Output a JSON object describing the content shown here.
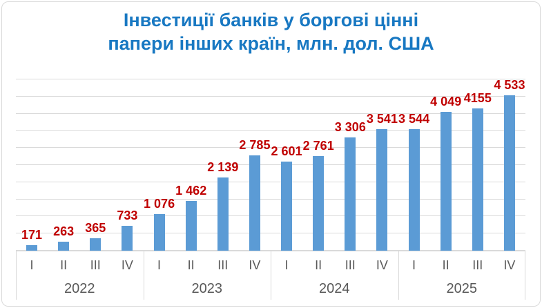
{
  "window": {
    "background": "#FFFFFF",
    "border_color": "#D9D9D9"
  },
  "title": {
    "lines": [
      "Інвестиції банків у боргові цінні",
      "папери інших країн, млн. дол. США"
    ],
    "color": "#1878C2"
  },
  "chart_data": {
    "type": "bar",
    "title": "Інвестиції банків у боргові цінні папери інших країн, млн. дол. США",
    "groups": [
      {
        "label": "2022",
        "categories": [
          "I",
          "II",
          "III",
          "IV"
        ]
      },
      {
        "label": "2023",
        "categories": [
          "I",
          "II",
          "III",
          "IV"
        ]
      },
      {
        "label": "2024",
        "categories": [
          "I",
          "II",
          "III",
          "IV"
        ]
      },
      {
        "label": "2025",
        "categories": [
          "I",
          "II",
          "III",
          "IV"
        ]
      }
    ],
    "values": [
      171,
      263,
      365,
      733,
      1076,
      1462,
      2139,
      2785,
      2601,
      2761,
      3306,
      3541,
      3544,
      4049,
      4155,
      4533
    ],
    "labels": [
      "171",
      "263",
      "365",
      "733",
      "1 076",
      "1 462",
      "2 139",
      "2 785",
      "2 601",
      "2 761",
      "3 306",
      "3 541",
      "3 544",
      "4 049",
      "4155",
      "4 533"
    ],
    "ylim": [
      0,
      5000
    ],
    "gridline_step": 500,
    "grid": true,
    "legend": "none",
    "bar_color": "#5B9BD5",
    "data_label_color": "#C00000",
    "axis_text_color": "#595959",
    "gridline_color": "#D9D9D9"
  }
}
